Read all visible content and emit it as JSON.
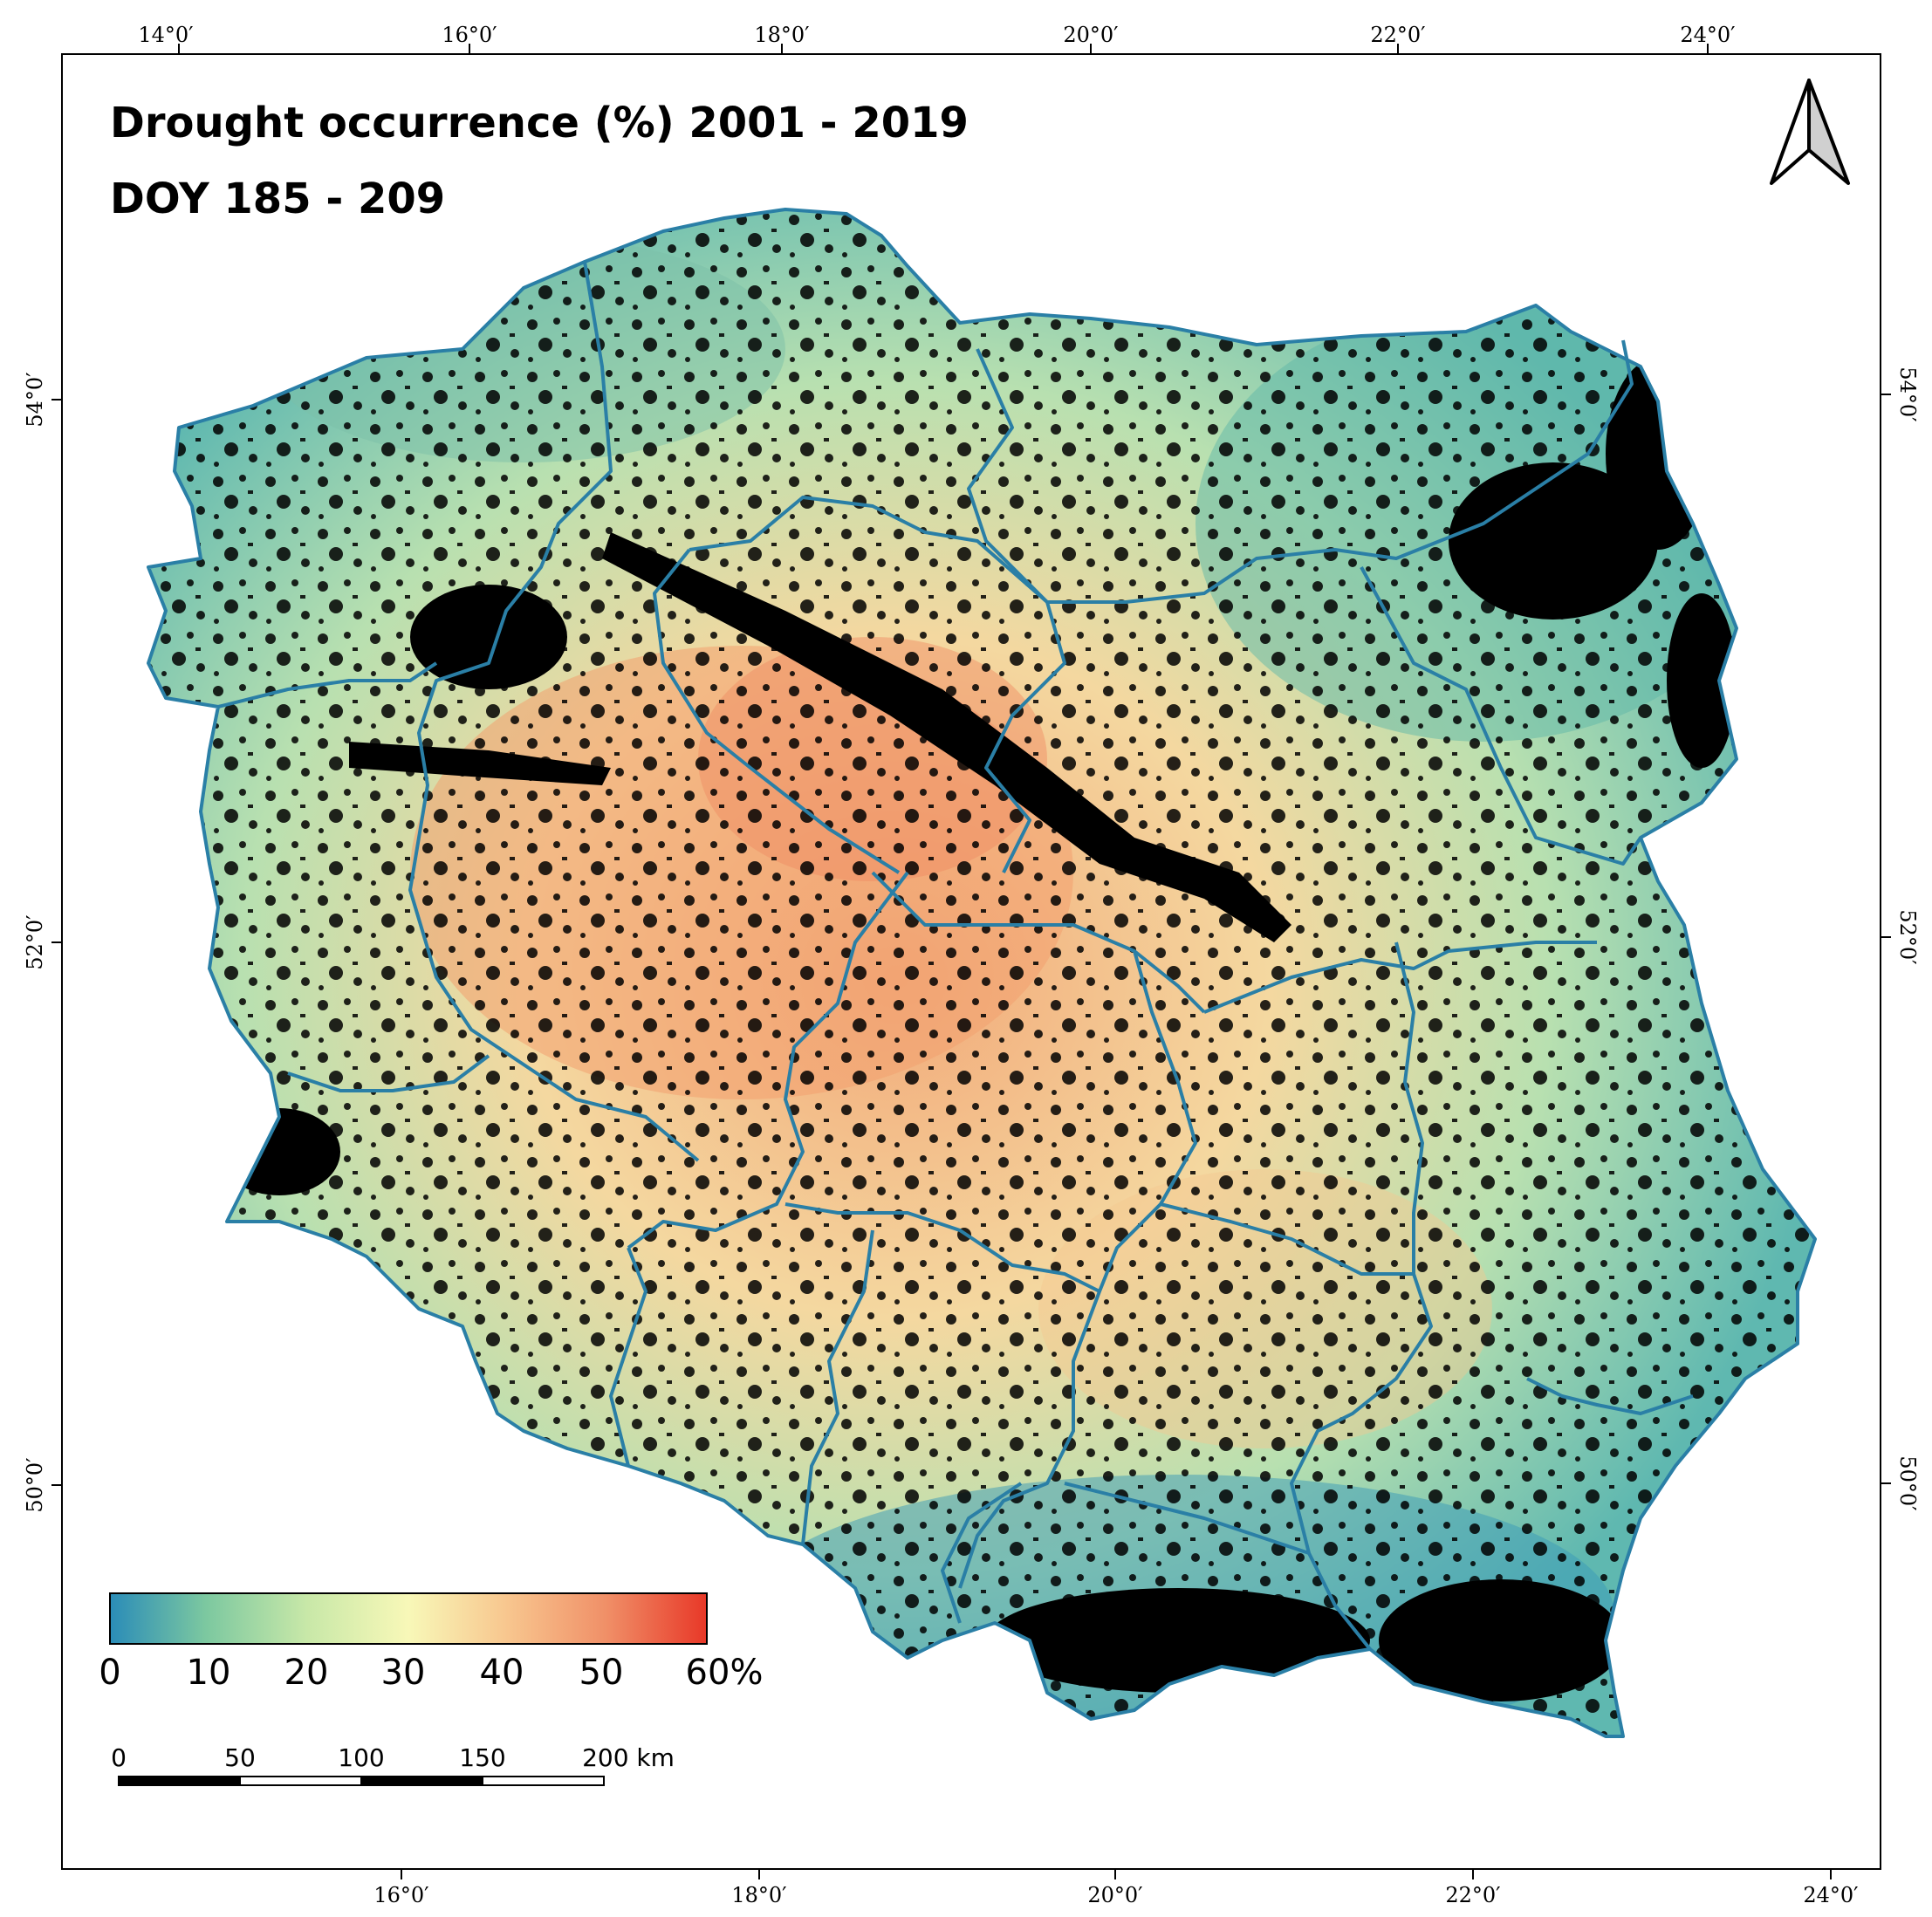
{
  "title": {
    "line1": "Drought occurrence (%) 2001 - 2019",
    "line2": "DOY 185 - 209"
  },
  "graticule": {
    "top_longitudes": [
      "14°0′",
      "16°0′",
      "18°0′",
      "20°0′",
      "22°0′",
      "24°0′"
    ],
    "bottom_longitudes": [
      "16°0′",
      "18°0′",
      "20°0′",
      "22°0′",
      "24°0′"
    ],
    "left_latitudes": [
      "54°0′",
      "52°0′",
      "50°0′"
    ],
    "right_latitudes": [
      "54°0′",
      "52°0′",
      "50°0′"
    ]
  },
  "legend": {
    "ticks": [
      "0",
      "10",
      "20",
      "30",
      "40",
      "50",
      "60%"
    ],
    "colors": [
      "#2a8cb8",
      "#7cc8a0",
      "#c8e8a8",
      "#f8f8b8",
      "#f8c890",
      "#f09068",
      "#e83828"
    ]
  },
  "scale_bar": {
    "labels": [
      "0",
      "50",
      "100",
      "150",
      "200 km"
    ]
  },
  "map_colors": {
    "border": "#2a7fa6",
    "forest_mask": "#000000",
    "low": "#4fb0b8",
    "mid": "#a8dcb0",
    "high": "#f2a070"
  },
  "north_arrow": {
    "icon": "north-arrow-icon"
  }
}
